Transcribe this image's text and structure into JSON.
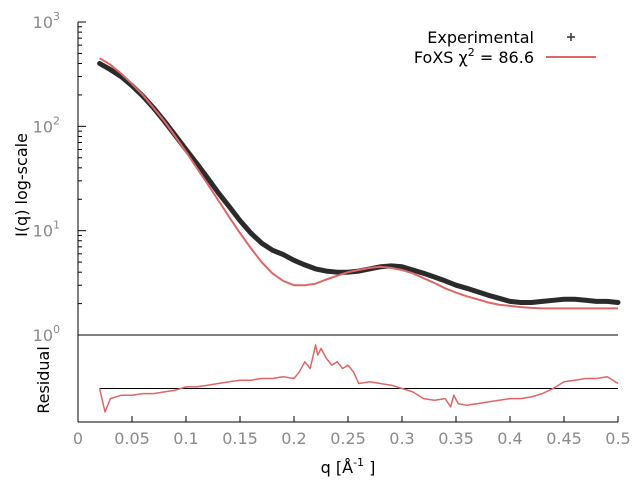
{
  "chart_data": [
    {
      "type": "line",
      "panel": "top",
      "y_scale": "log",
      "xlim": [
        0,
        0.5
      ],
      "ylim": [
        1,
        1000
      ],
      "ylabel": "I(q) log-scale",
      "y_ticks": [
        {
          "value": 1,
          "mantissa": "10",
          "exponent": "0"
        },
        {
          "value": 10,
          "mantissa": "10",
          "exponent": "1"
        },
        {
          "value": 100,
          "mantissa": "10",
          "exponent": "2"
        },
        {
          "value": 1000,
          "mantissa": "10",
          "exponent": "3"
        }
      ],
      "legend": {
        "placement": "top-right",
        "entries": [
          {
            "label": "Experimental",
            "style": "points",
            "color": "#333333"
          },
          {
            "label_prefix": "FoXS χ",
            "label_sup": "2",
            "label_suffix": " = 86.6",
            "style": "line",
            "color": "#e06666"
          }
        ]
      },
      "series": [
        {
          "name": "Experimental",
          "style": "points",
          "color": "#2b2b2b",
          "x": [
            0.02,
            0.03,
            0.04,
            0.05,
            0.06,
            0.07,
            0.08,
            0.09,
            0.1,
            0.11,
            0.12,
            0.13,
            0.14,
            0.15,
            0.16,
            0.17,
            0.18,
            0.19,
            0.2,
            0.21,
            0.22,
            0.23,
            0.24,
            0.25,
            0.26,
            0.27,
            0.28,
            0.29,
            0.3,
            0.31,
            0.32,
            0.33,
            0.34,
            0.35,
            0.36,
            0.37,
            0.38,
            0.39,
            0.4,
            0.41,
            0.42,
            0.43,
            0.44,
            0.45,
            0.46,
            0.47,
            0.48,
            0.49,
            0.5
          ],
          "y": [
            400,
            350,
            300,
            245,
            195,
            150,
            112,
            82,
            60,
            44,
            32,
            23,
            17,
            12.5,
            9.5,
            7.6,
            6.5,
            5.9,
            5.2,
            4.7,
            4.3,
            4.1,
            4.0,
            4.0,
            4.1,
            4.3,
            4.5,
            4.6,
            4.5,
            4.2,
            3.9,
            3.6,
            3.3,
            3.0,
            2.8,
            2.6,
            2.4,
            2.25,
            2.1,
            2.05,
            2.05,
            2.1,
            2.15,
            2.2,
            2.2,
            2.15,
            2.1,
            2.1,
            2.05
          ]
        },
        {
          "name": "FoXS",
          "style": "line",
          "color": "#e06666",
          "x": [
            0.02,
            0.03,
            0.04,
            0.05,
            0.06,
            0.07,
            0.08,
            0.09,
            0.1,
            0.11,
            0.12,
            0.13,
            0.14,
            0.15,
            0.16,
            0.17,
            0.18,
            0.19,
            0.2,
            0.21,
            0.22,
            0.23,
            0.24,
            0.25,
            0.26,
            0.27,
            0.28,
            0.29,
            0.3,
            0.31,
            0.32,
            0.33,
            0.34,
            0.35,
            0.36,
            0.37,
            0.38,
            0.39,
            0.4,
            0.41,
            0.42,
            0.43,
            0.44,
            0.45,
            0.46,
            0.47,
            0.48,
            0.49,
            0.5
          ],
          "y": [
            450,
            390,
            320,
            255,
            200,
            150,
            112,
            80,
            57,
            40,
            28,
            19.5,
            13.5,
            9.5,
            6.8,
            5.0,
            3.9,
            3.3,
            3.0,
            3.0,
            3.1,
            3.4,
            3.7,
            4.0,
            4.2,
            4.4,
            4.5,
            4.4,
            4.2,
            3.9,
            3.5,
            3.15,
            2.8,
            2.55,
            2.35,
            2.2,
            2.05,
            1.95,
            1.9,
            1.85,
            1.82,
            1.8,
            1.8,
            1.8,
            1.8,
            1.8,
            1.8,
            1.8,
            1.8
          ]
        }
      ]
    },
    {
      "type": "line",
      "panel": "bottom",
      "xlim": [
        0,
        0.5
      ],
      "ylim": [
        -1,
        1.6
      ],
      "xlabel_prefix": "q [Å",
      "xlabel_sup": "-1",
      "xlabel_suffix": " ]",
      "ylabel": "Residual",
      "x_ticks": [
        "0",
        "0.05",
        "0.1",
        "0.15",
        "0.2",
        "0.25",
        "0.3",
        "0.35",
        "0.4",
        "0.45",
        "0.5"
      ],
      "reference_line": {
        "y": 0,
        "color": "#000000"
      },
      "series": [
        {
          "style": "line",
          "color": "#e06666",
          "x": [
            0.02,
            0.025,
            0.03,
            0.04,
            0.05,
            0.06,
            0.07,
            0.08,
            0.09,
            0.1,
            0.11,
            0.12,
            0.13,
            0.14,
            0.15,
            0.16,
            0.17,
            0.18,
            0.19,
            0.2,
            0.205,
            0.21,
            0.215,
            0.22,
            0.222,
            0.225,
            0.23,
            0.235,
            0.24,
            0.245,
            0.25,
            0.255,
            0.26,
            0.27,
            0.28,
            0.29,
            0.3,
            0.31,
            0.32,
            0.33,
            0.34,
            0.345,
            0.348,
            0.352,
            0.36,
            0.37,
            0.38,
            0.39,
            0.4,
            0.41,
            0.42,
            0.43,
            0.44,
            0.45,
            0.46,
            0.47,
            0.48,
            0.49,
            0.5
          ],
          "y": [
            0.0,
            -0.7,
            -0.3,
            -0.2,
            -0.2,
            -0.15,
            -0.15,
            -0.1,
            -0.05,
            0.05,
            0.05,
            0.1,
            0.15,
            0.2,
            0.25,
            0.25,
            0.3,
            0.3,
            0.35,
            0.3,
            0.5,
            0.8,
            0.6,
            1.3,
            1.0,
            1.2,
            0.9,
            0.7,
            0.8,
            0.6,
            0.7,
            0.5,
            0.15,
            0.2,
            0.15,
            0.1,
            0.0,
            -0.1,
            -0.3,
            -0.35,
            -0.3,
            -0.55,
            -0.2,
            -0.45,
            -0.5,
            -0.45,
            -0.4,
            -0.35,
            -0.3,
            -0.3,
            -0.25,
            -0.15,
            0.0,
            0.2,
            0.25,
            0.3,
            0.3,
            0.35,
            0.15
          ]
        }
      ]
    }
  ]
}
